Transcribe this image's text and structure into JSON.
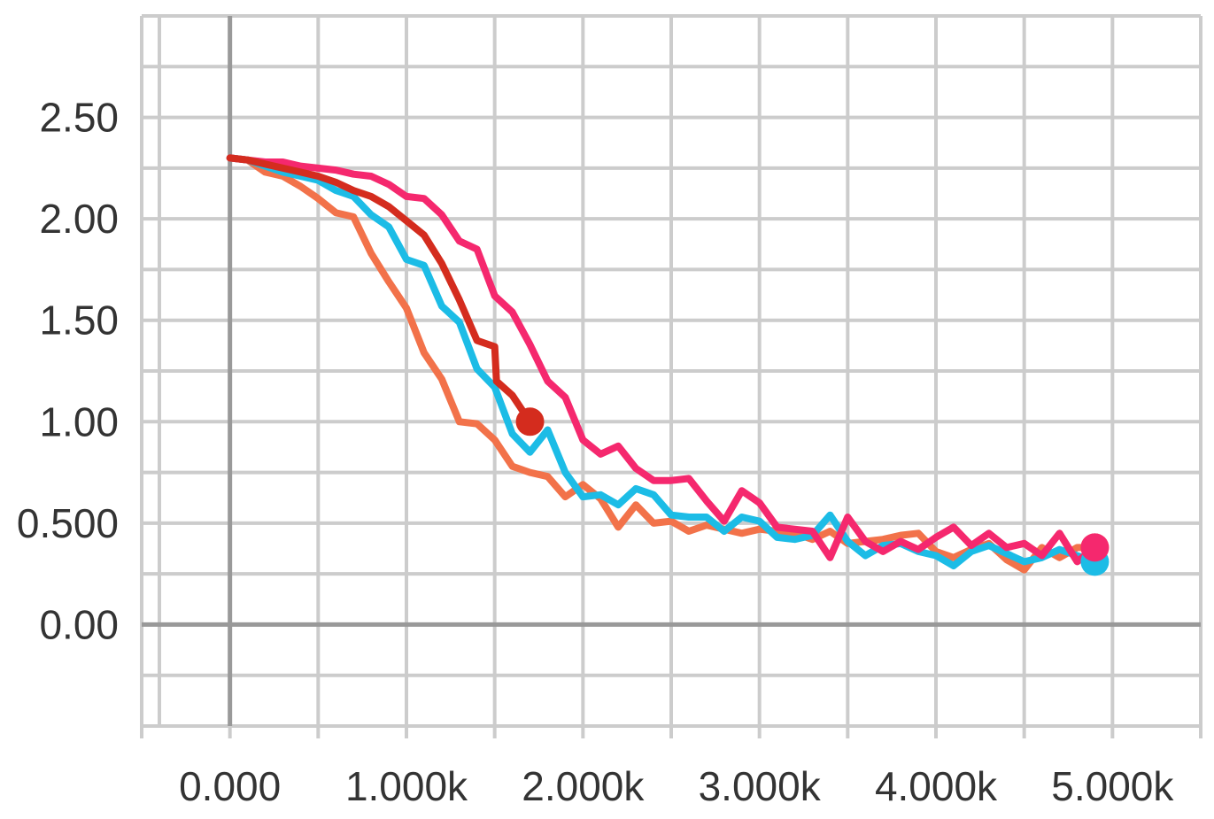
{
  "chart_data": {
    "type": "line",
    "title": "",
    "xlabel": "",
    "ylabel": "",
    "xlim": [
      -500,
      5500
    ],
    "ylim": [
      -0.5,
      3.0
    ],
    "x_ticks": [
      {
        "value": 0,
        "label": "0.000"
      },
      {
        "value": 1000,
        "label": "1.000k"
      },
      {
        "value": 2000,
        "label": "2.000k"
      },
      {
        "value": 3000,
        "label": "3.000k"
      },
      {
        "value": 4000,
        "label": "4.000k"
      },
      {
        "value": 5000,
        "label": "5.000k"
      }
    ],
    "y_ticks": [
      {
        "value": 0,
        "label": "0.00"
      },
      {
        "value": 0.5,
        "label": "0.500"
      },
      {
        "value": 1.0,
        "label": "1.00"
      },
      {
        "value": 1.5,
        "label": "1.50"
      },
      {
        "value": 2.0,
        "label": "2.00"
      },
      {
        "value": 2.5,
        "label": "2.50"
      }
    ],
    "grid": true,
    "legend": "none",
    "series": [
      {
        "color": "#f2724a",
        "points": [
          [
            0,
            2.3
          ],
          [
            100,
            2.29
          ],
          [
            200,
            2.23
          ],
          [
            300,
            2.21
          ],
          [
            400,
            2.16
          ],
          [
            500,
            2.1
          ],
          [
            600,
            2.03
          ],
          [
            700,
            2.01
          ],
          [
            800,
            1.83
          ],
          [
            900,
            1.69
          ],
          [
            1000,
            1.56
          ],
          [
            1100,
            1.34
          ],
          [
            1200,
            1.21
          ],
          [
            1300,
            1.0
          ],
          [
            1400,
            0.99
          ],
          [
            1500,
            0.91
          ],
          [
            1600,
            0.78
          ],
          [
            1700,
            0.75
          ],
          [
            1800,
            0.73
          ],
          [
            1900,
            0.63
          ],
          [
            2000,
            0.69
          ],
          [
            2100,
            0.62
          ],
          [
            2200,
            0.48
          ],
          [
            2300,
            0.59
          ],
          [
            2400,
            0.5
          ],
          [
            2500,
            0.51
          ],
          [
            2600,
            0.46
          ],
          [
            2700,
            0.49
          ],
          [
            2800,
            0.47
          ],
          [
            2900,
            0.45
          ],
          [
            3000,
            0.47
          ],
          [
            3100,
            0.46
          ],
          [
            3200,
            0.45
          ],
          [
            3300,
            0.42
          ],
          [
            3400,
            0.46
          ],
          [
            3500,
            0.4
          ],
          [
            3600,
            0.41
          ],
          [
            3700,
            0.42
          ],
          [
            3800,
            0.44
          ],
          [
            3900,
            0.45
          ],
          [
            4000,
            0.36
          ],
          [
            4100,
            0.33
          ],
          [
            4200,
            0.37
          ],
          [
            4300,
            0.4
          ],
          [
            4400,
            0.32
          ],
          [
            4500,
            0.27
          ],
          [
            4600,
            0.38
          ],
          [
            4700,
            0.33
          ],
          [
            4800,
            0.38
          ],
          [
            4900,
            0.38
          ]
        ]
      },
      {
        "color": "#1cbce6",
        "points": [
          [
            0,
            2.3
          ],
          [
            100,
            2.29
          ],
          [
            200,
            2.26
          ],
          [
            300,
            2.23
          ],
          [
            400,
            2.21
          ],
          [
            500,
            2.19
          ],
          [
            600,
            2.14
          ],
          [
            700,
            2.11
          ],
          [
            800,
            2.02
          ],
          [
            900,
            1.96
          ],
          [
            1000,
            1.8
          ],
          [
            1100,
            1.77
          ],
          [
            1200,
            1.57
          ],
          [
            1300,
            1.49
          ],
          [
            1400,
            1.26
          ],
          [
            1500,
            1.17
          ],
          [
            1600,
            0.94
          ],
          [
            1700,
            0.85
          ],
          [
            1800,
            0.96
          ],
          [
            1900,
            0.75
          ],
          [
            2000,
            0.63
          ],
          [
            2100,
            0.64
          ],
          [
            2200,
            0.59
          ],
          [
            2300,
            0.67
          ],
          [
            2400,
            0.64
          ],
          [
            2500,
            0.54
          ],
          [
            2600,
            0.53
          ],
          [
            2700,
            0.53
          ],
          [
            2800,
            0.46
          ],
          [
            2900,
            0.53
          ],
          [
            3000,
            0.51
          ],
          [
            3100,
            0.43
          ],
          [
            3200,
            0.42
          ],
          [
            3300,
            0.44
          ],
          [
            3400,
            0.54
          ],
          [
            3500,
            0.41
          ],
          [
            3600,
            0.34
          ],
          [
            3700,
            0.39
          ],
          [
            3800,
            0.4
          ],
          [
            3900,
            0.36
          ],
          [
            4000,
            0.34
          ],
          [
            4100,
            0.29
          ],
          [
            4200,
            0.36
          ],
          [
            4300,
            0.39
          ],
          [
            4400,
            0.35
          ],
          [
            4500,
            0.31
          ],
          [
            4600,
            0.33
          ],
          [
            4700,
            0.37
          ],
          [
            4800,
            0.34
          ],
          [
            4900,
            0.31
          ]
        ]
      },
      {
        "color": "#f5286e",
        "points": [
          [
            0,
            2.3
          ],
          [
            100,
            2.29
          ],
          [
            200,
            2.28
          ],
          [
            300,
            2.28
          ],
          [
            400,
            2.26
          ],
          [
            500,
            2.25
          ],
          [
            600,
            2.24
          ],
          [
            700,
            2.22
          ],
          [
            800,
            2.21
          ],
          [
            900,
            2.17
          ],
          [
            1000,
            2.11
          ],
          [
            1100,
            2.1
          ],
          [
            1200,
            2.02
          ],
          [
            1300,
            1.89
          ],
          [
            1400,
            1.85
          ],
          [
            1500,
            1.62
          ],
          [
            1600,
            1.54
          ],
          [
            1700,
            1.38
          ],
          [
            1800,
            1.2
          ],
          [
            1900,
            1.12
          ],
          [
            2000,
            0.91
          ],
          [
            2100,
            0.84
          ],
          [
            2200,
            0.88
          ],
          [
            2300,
            0.77
          ],
          [
            2400,
            0.71
          ],
          [
            2500,
            0.71
          ],
          [
            2600,
            0.72
          ],
          [
            2700,
            0.61
          ],
          [
            2800,
            0.51
          ],
          [
            2900,
            0.66
          ],
          [
            3000,
            0.6
          ],
          [
            3100,
            0.48
          ],
          [
            3200,
            0.47
          ],
          [
            3300,
            0.46
          ],
          [
            3400,
            0.33
          ],
          [
            3500,
            0.53
          ],
          [
            3600,
            0.41
          ],
          [
            3700,
            0.36
          ],
          [
            3800,
            0.41
          ],
          [
            3900,
            0.37
          ],
          [
            4000,
            0.43
          ],
          [
            4100,
            0.48
          ],
          [
            4200,
            0.39
          ],
          [
            4300,
            0.45
          ],
          [
            4400,
            0.38
          ],
          [
            4500,
            0.4
          ],
          [
            4600,
            0.34
          ],
          [
            4700,
            0.45
          ],
          [
            4800,
            0.31
          ],
          [
            4900,
            0.38
          ]
        ]
      },
      {
        "color": "#d42c1e",
        "points": [
          [
            0,
            2.3
          ],
          [
            100,
            2.29
          ],
          [
            200,
            2.27
          ],
          [
            300,
            2.25
          ],
          [
            400,
            2.23
          ],
          [
            500,
            2.21
          ],
          [
            600,
            2.18
          ],
          [
            700,
            2.14
          ],
          [
            800,
            2.11
          ],
          [
            900,
            2.06
          ],
          [
            1000,
            1.99
          ],
          [
            1100,
            1.92
          ],
          [
            1200,
            1.78
          ],
          [
            1300,
            1.6
          ],
          [
            1400,
            1.4
          ],
          [
            1500,
            1.37
          ],
          [
            1510,
            1.2
          ],
          [
            1600,
            1.13
          ],
          [
            1700,
            1.0
          ]
        ]
      }
    ]
  }
}
